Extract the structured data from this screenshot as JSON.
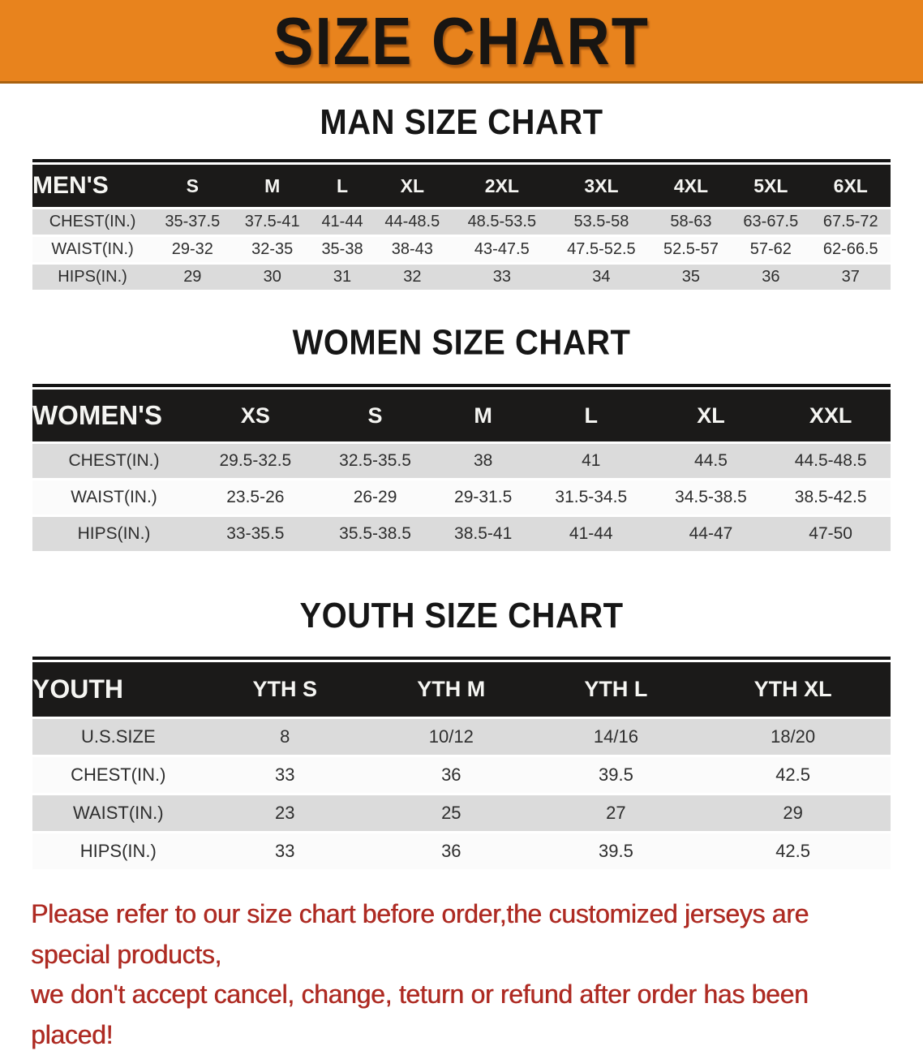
{
  "banner": {
    "title": "SIZE CHART",
    "bg_color": "#E8831D"
  },
  "sections": [
    {
      "id": "men",
      "title": "MAN SIZE CHART",
      "table": {
        "header_label": "MEN'S",
        "columns": [
          "S",
          "M",
          "L",
          "XL",
          "2XL",
          "3XL",
          "4XL",
          "5XL",
          "6XL"
        ],
        "rows": [
          {
            "label": "CHEST(IN.)",
            "values": [
              "35-37.5",
              "37.5-41",
              "41-44",
              "44-48.5",
              "48.5-53.5",
              "53.5-58",
              "58-63",
              "63-67.5",
              "67.5-72"
            ]
          },
          {
            "label": "WAIST(IN.)",
            "values": [
              "29-32",
              "32-35",
              "35-38",
              "38-43",
              "43-47.5",
              "47.5-52.5",
              "52.5-57",
              "57-62",
              "62-66.5"
            ]
          },
          {
            "label": "HIPS(IN.)",
            "values": [
              "29",
              "30",
              "31",
              "32",
              "33",
              "34",
              "35",
              "36",
              "37"
            ]
          }
        ]
      }
    },
    {
      "id": "women",
      "title": "WOMEN SIZE CHART",
      "table": {
        "header_label": "WOMEN'S",
        "columns": [
          "XS",
          "S",
          "M",
          "L",
          "XL",
          "XXL"
        ],
        "rows": [
          {
            "label": "CHEST(IN.)",
            "values": [
              "29.5-32.5",
              "32.5-35.5",
              "38",
              "41",
              "44.5",
              "44.5-48.5"
            ]
          },
          {
            "label": "WAIST(IN.)",
            "values": [
              "23.5-26",
              "26-29",
              "29-31.5",
              "31.5-34.5",
              "34.5-38.5",
              "38.5-42.5"
            ]
          },
          {
            "label": "HIPS(IN.)",
            "values": [
              "33-35.5",
              "35.5-38.5",
              "38.5-41",
              "41-44",
              "44-47",
              "47-50"
            ]
          }
        ]
      }
    },
    {
      "id": "youth",
      "title": "YOUTH SIZE CHART",
      "table": {
        "header_label": "YOUTH",
        "columns": [
          "YTH S",
          "YTH M",
          "YTH L",
          "YTH XL"
        ],
        "rows": [
          {
            "label": "U.S.SIZE",
            "values": [
              "8",
              "10/12",
              "14/16",
              "18/20"
            ]
          },
          {
            "label": "CHEST(IN.)",
            "values": [
              "33",
              "36",
              "39.5",
              "42.5"
            ]
          },
          {
            "label": "WAIST(IN.)",
            "values": [
              "23",
              "25",
              "27",
              "29"
            ]
          },
          {
            "label": "HIPS(IN.)",
            "values": [
              "33",
              "36",
              "39.5",
              "42.5"
            ]
          }
        ]
      }
    }
  ],
  "disclaimer": {
    "line1": "Please refer to our size chart before order,the customized jerseys are special products,",
    "line2": "we don't accept cancel, change, teturn or refund after order has been placed!",
    "color": "#AE2B23"
  }
}
